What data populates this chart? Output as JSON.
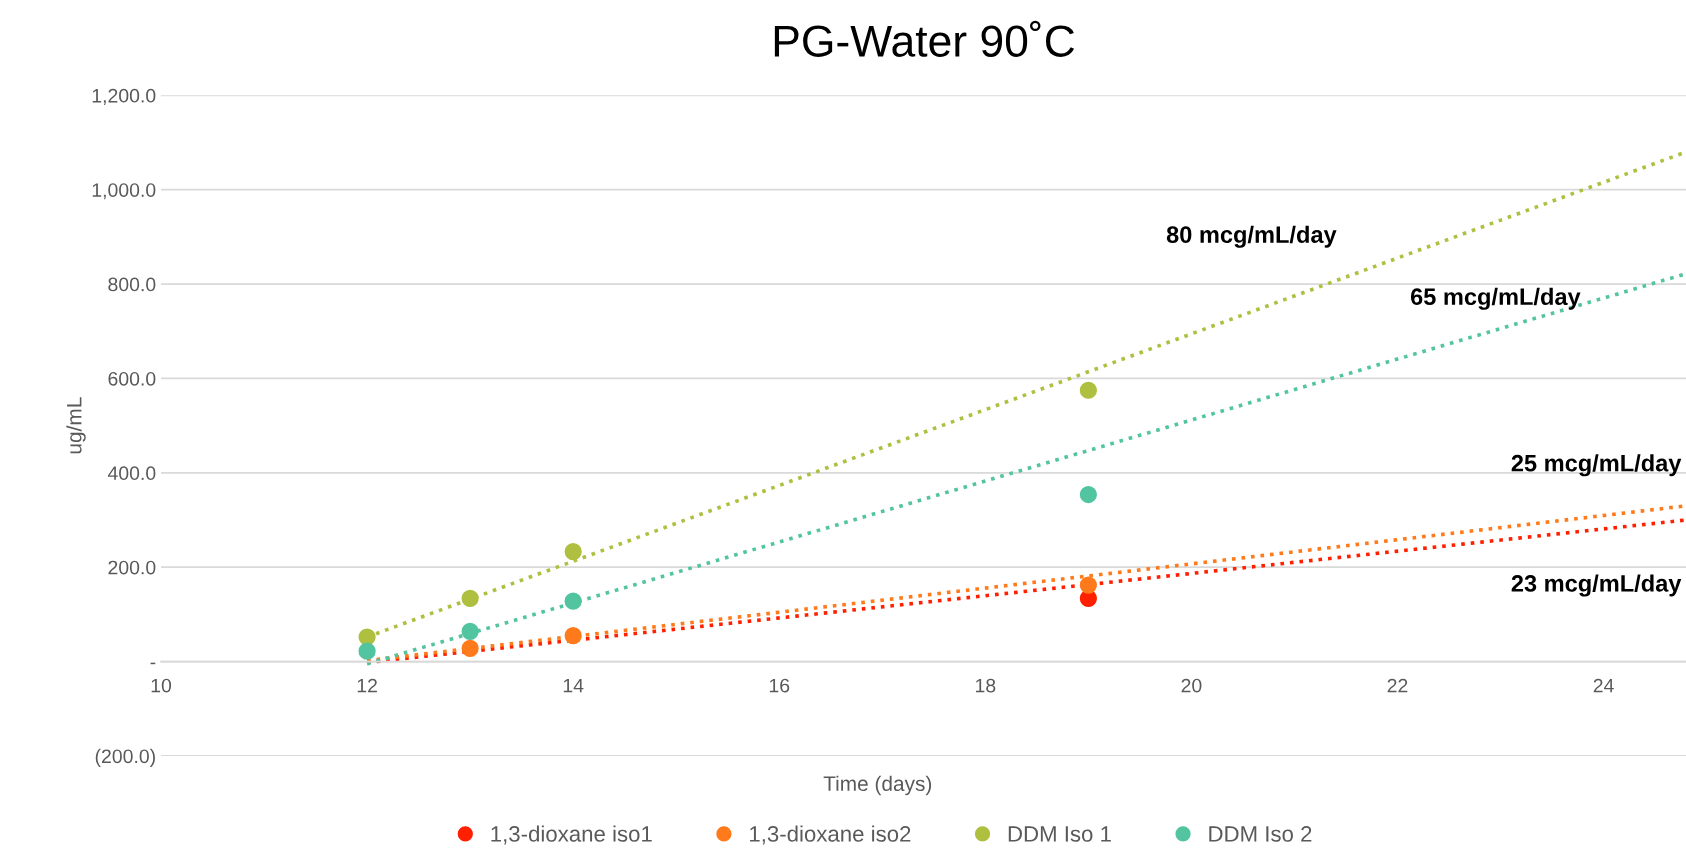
{
  "chart_data": {
    "type": "scatter",
    "title": "PG-Water 90˚C",
    "xlabel": "Time (days)",
    "ylabel": "ug/mL",
    "xlim": [
      10,
      24.8
    ],
    "xticks": [
      10,
      12,
      14,
      16,
      18,
      20,
      22,
      24
    ],
    "ylim": [
      -200,
      1200
    ],
    "yticks": [
      {
        "value": -200,
        "label": "(200.0)"
      },
      {
        "value": 0,
        "label": "-"
      },
      {
        "value": 200,
        "label": "200.0"
      },
      {
        "value": 400,
        "label": "400.0"
      },
      {
        "value": 600,
        "label": "600.0"
      },
      {
        "value": 800,
        "label": "800.0"
      },
      {
        "value": 1000,
        "label": "1,000.0"
      },
      {
        "value": 1200,
        "label": "1,200.0"
      }
    ],
    "grid": "y",
    "legend": "bottom",
    "marker": "circle",
    "series": [
      {
        "name": "1,3-dioxane iso1",
        "color": "#ff2000",
        "x": [
          19
        ],
        "values": [
          134
        ]
      },
      {
        "name": "1,3-dioxane iso2",
        "color": "#ff7a1a",
        "x": [
          13,
          14,
          19
        ],
        "values": [
          28,
          55,
          162
        ]
      },
      {
        "name": "DDM Iso 1",
        "color": "#afbf3f",
        "x": [
          12,
          13,
          14,
          19
        ],
        "values": [
          52,
          134,
          233,
          575
        ]
      },
      {
        "name": "DDM Iso 2",
        "color": "#52c4a0",
        "x": [
          12,
          13,
          14,
          19
        ],
        "values": [
          22,
          64,
          128,
          354
        ]
      },
      {
        "type": "line",
        "color": "#ff2000",
        "line_style": "dotted",
        "marker": "none",
        "x": [
          12,
          24.8
        ],
        "values": [
          -2,
          300
        ]
      },
      {
        "type": "line",
        "color": "#ff7a1a",
        "line_style": "dotted",
        "marker": "none",
        "x": [
          12,
          24.8
        ],
        "values": [
          2,
          330
        ]
      },
      {
        "type": "line",
        "color": "#afbf3f",
        "line_style": "dotted",
        "marker": "none",
        "x": [
          12,
          24.8
        ],
        "values": [
          52,
          1080
        ]
      },
      {
        "type": "line",
        "color": "#52c4a0",
        "line_style": "dotted",
        "marker": "none",
        "x": [
          12,
          24.8
        ],
        "values": [
          -5,
          822
        ]
      }
    ],
    "annotations": [
      "80 mcg/mL/day",
      "65 mcg/mL/day",
      "25 mcg/mL/day",
      "23 mcg/mL/day"
    ]
  }
}
